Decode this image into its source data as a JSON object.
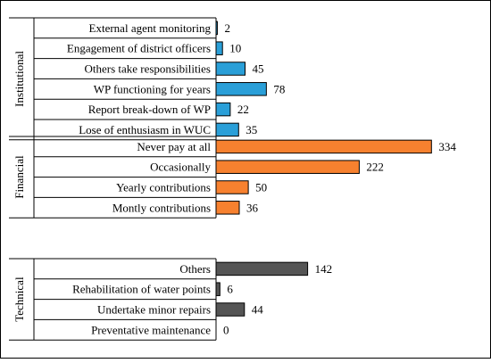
{
  "chart_data": {
    "type": "bar",
    "orientation": "horizontal",
    "grid": false,
    "legend": "none",
    "groups": [
      {
        "name": "Institutional",
        "color": "#2a9fd8",
        "categories": [
          "External agent monitoring",
          "Engagement of district officers",
          "Others take responsibilities",
          "WP functioning for years",
          "Report break-down of WP",
          "Lose of enthusiasm in WUC"
        ],
        "values": [
          2,
          10,
          45,
          78,
          22,
          35
        ]
      },
      {
        "name": "Financial",
        "color": "#f7812f",
        "categories": [
          "Never pay at all",
          "Occasionally",
          "Yearly contributions",
          "Montly contributions"
        ],
        "values": [
          334,
          222,
          50,
          36
        ]
      },
      {
        "name": "Technical",
        "color": "#555555",
        "categories": [
          "Others",
          "Rehabilitation of water points",
          "Undertake minor repairs",
          "Preventative maintenance"
        ],
        "values": [
          142,
          6,
          44,
          0
        ]
      }
    ]
  }
}
